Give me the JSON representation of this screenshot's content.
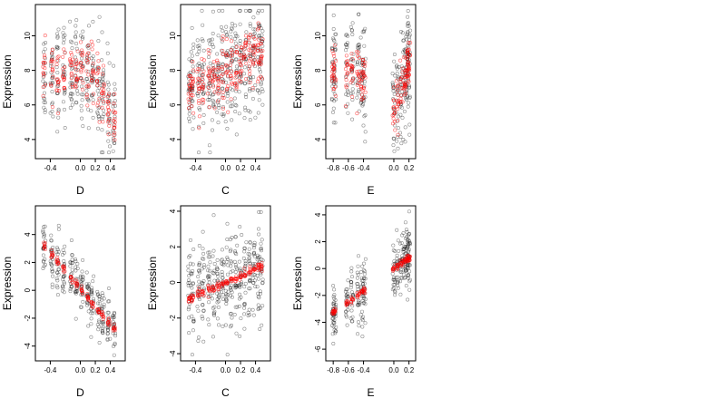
{
  "chart_data": [
    {
      "type": "scatter",
      "xlabel": "D",
      "ylabel": "Expression",
      "xlim": [
        -0.55,
        0.55
      ],
      "ylim": [
        3.1,
        11.6
      ],
      "xticks": [
        -0.4,
        0.0,
        0.2,
        0.4
      ],
      "xtick_labels": [
        "-0.4",
        "0.0",
        "0.2",
        "0.4"
      ],
      "yticks": [
        4,
        6,
        8,
        10
      ],
      "ytick_labels": [
        "4",
        "6",
        "8",
        "10"
      ],
      "fitted": false,
      "groups": [
        -0.48,
        -0.38,
        -0.3,
        -0.22,
        -0.12,
        -0.05,
        0.02,
        0.1,
        0.16,
        0.24,
        0.3,
        0.38,
        0.45
      ],
      "trend": {
        "type": "piecewise",
        "x": [
          -0.48,
          0.15,
          0.45
        ],
        "y": [
          7.8,
          7.9,
          5.1
        ]
      },
      "spread_observed": 1.4,
      "spread_fitted": 0.8,
      "series": [
        {
          "name": "",
          "role": "observed",
          "color": "#000000"
        },
        {
          "name": "",
          "role": "fitted",
          "color": "#ff0000"
        }
      ]
    },
    {
      "type": "scatter",
      "xlabel": "C",
      "ylabel": "Expression",
      "xlim": [
        -0.55,
        0.55
      ],
      "ylim": [
        3.1,
        11.6
      ],
      "xticks": [
        -0.4,
        0.0,
        0.2,
        0.4
      ],
      "xtick_labels": [
        "-0.4",
        "0.0",
        "0.2",
        "0.4"
      ],
      "yticks": [
        4,
        6,
        8,
        10
      ],
      "ytick_labels": [
        "4",
        "6",
        "8",
        "10"
      ],
      "fitted": false,
      "groups": [
        -0.48,
        -0.44,
        -0.36,
        -0.3,
        -0.22,
        -0.16,
        -0.1,
        -0.04,
        0.02,
        0.08,
        0.14,
        0.2,
        0.26,
        0.32,
        0.38,
        0.44,
        0.48
      ],
      "trend": {
        "type": "linear",
        "x": [
          -0.48,
          0.48
        ],
        "y": [
          7.0,
          8.8
        ]
      },
      "spread_observed": 1.6,
      "spread_fitted": 0.9,
      "series": [
        {
          "name": "",
          "role": "observed",
          "color": "#000000"
        },
        {
          "name": "",
          "role": "fitted",
          "color": "#ff0000"
        }
      ]
    },
    {
      "type": "scatter",
      "xlabel": "E",
      "ylabel": "Expression",
      "xlim": [
        -0.85,
        0.24
      ],
      "ylim": [
        3.1,
        11.6
      ],
      "xticks": [
        -0.8,
        -0.6,
        -0.4,
        0.0,
        0.2
      ],
      "xtick_labels": [
        "-0.8",
        "-0.6",
        "-0.4",
        "0.0",
        "0.2"
      ],
      "yticks": [
        4,
        6,
        8,
        10
      ],
      "ytick_labels": [
        "4",
        "6",
        "8",
        "10"
      ],
      "fitted": false,
      "groups": [
        -0.8,
        -0.78,
        -0.62,
        -0.55,
        -0.47,
        -0.42,
        -0.39,
        0.0,
        0.05,
        0.1,
        0.14,
        0.17,
        0.19,
        0.2
      ],
      "trend": {
        "type": "piecewise",
        "x": [
          -0.8,
          -0.39,
          0.0,
          0.2
        ],
        "y": [
          8.0,
          7.8,
          5.7,
          8.2
        ]
      },
      "spread_observed": 1.5,
      "spread_fitted": 0.7,
      "series": [
        {
          "name": "",
          "role": "observed",
          "color": "#000000"
        },
        {
          "name": "",
          "role": "fitted",
          "color": "#ff0000"
        }
      ]
    },
    {
      "type": "scatter",
      "xlabel": "D",
      "ylabel": "Expression",
      "xlim": [
        -0.55,
        0.55
      ],
      "ylim": [
        -4.8,
        5.8
      ],
      "xticks": [
        -0.4,
        0.0,
        0.2,
        0.4
      ],
      "xtick_labels": [
        "-0.4",
        "0.0",
        "0.2",
        "0.4"
      ],
      "yticks": [
        -4,
        -2,
        0,
        2,
        4
      ],
      "ytick_labels": [
        "-4",
        "-2",
        "0",
        "2",
        "4"
      ],
      "fitted": true,
      "groups": [
        -0.48,
        -0.38,
        -0.3,
        -0.22,
        -0.12,
        -0.05,
        0.02,
        0.1,
        0.16,
        0.24,
        0.3,
        0.38,
        0.45
      ],
      "trend": {
        "type": "linear",
        "x": [
          -0.48,
          0.45
        ],
        "y": [
          3.2,
          -2.8
        ]
      },
      "spread_observed": 1.0,
      "spread_fitted": 0.15,
      "series": [
        {
          "name": "",
          "role": "observed",
          "color": "#000000"
        },
        {
          "name": "",
          "role": "fitted",
          "color": "#ff0000"
        }
      ]
    },
    {
      "type": "scatter",
      "xlabel": "C",
      "ylabel": "Expression",
      "xlim": [
        -0.55,
        0.55
      ],
      "ylim": [
        -4.2,
        4.1
      ],
      "xticks": [
        -0.4,
        0.0,
        0.2,
        0.4
      ],
      "xtick_labels": [
        "-0.4",
        "0.0",
        "0.2",
        "0.4"
      ],
      "yticks": [
        -4,
        -2,
        0,
        2,
        4
      ],
      "ytick_labels": [
        "-4",
        "-2",
        "0",
        "2",
        "4"
      ],
      "fitted": true,
      "groups": [
        -0.48,
        -0.44,
        -0.36,
        -0.3,
        -0.22,
        -0.16,
        -0.1,
        -0.04,
        0.02,
        0.08,
        0.14,
        0.2,
        0.26,
        0.32,
        0.38,
        0.44,
        0.48
      ],
      "trend": {
        "type": "linear",
        "x": [
          -0.48,
          0.48
        ],
        "y": [
          -0.9,
          0.9
        ]
      },
      "spread_observed": 1.3,
      "spread_fitted": 0.12,
      "series": [
        {
          "name": "",
          "role": "observed",
          "color": "#000000"
        },
        {
          "name": "",
          "role": "fitted",
          "color": "#ff0000"
        }
      ]
    },
    {
      "type": "scatter",
      "xlabel": "E",
      "ylabel": "Expression",
      "xlim": [
        -0.85,
        0.24
      ],
      "ylim": [
        -6.6,
        4.4
      ],
      "xticks": [
        -0.8,
        -0.6,
        -0.4,
        0.0,
        0.2
      ],
      "xtick_labels": [
        "-0.8",
        "-0.6",
        "-0.4",
        "0.0",
        "0.2"
      ],
      "yticks": [
        -6,
        -4,
        -2,
        0,
        2,
        4
      ],
      "ytick_labels": [
        "-6",
        "-4",
        "-2",
        "0",
        "2",
        "4"
      ],
      "fitted": true,
      "groups": [
        -0.8,
        -0.78,
        -0.62,
        -0.55,
        -0.47,
        -0.42,
        -0.39,
        0.0,
        0.05,
        0.1,
        0.14,
        0.17,
        0.19,
        0.2
      ],
      "trend": {
        "type": "linear",
        "x": [
          -0.8,
          0.2
        ],
        "y": [
          -3.3,
          0.8
        ]
      },
      "spread_observed": 1.1,
      "spread_fitted": 0.12,
      "series": [
        {
          "name": "",
          "role": "observed",
          "color": "#000000"
        },
        {
          "name": "",
          "role": "fitted",
          "color": "#ff0000"
        }
      ]
    }
  ]
}
